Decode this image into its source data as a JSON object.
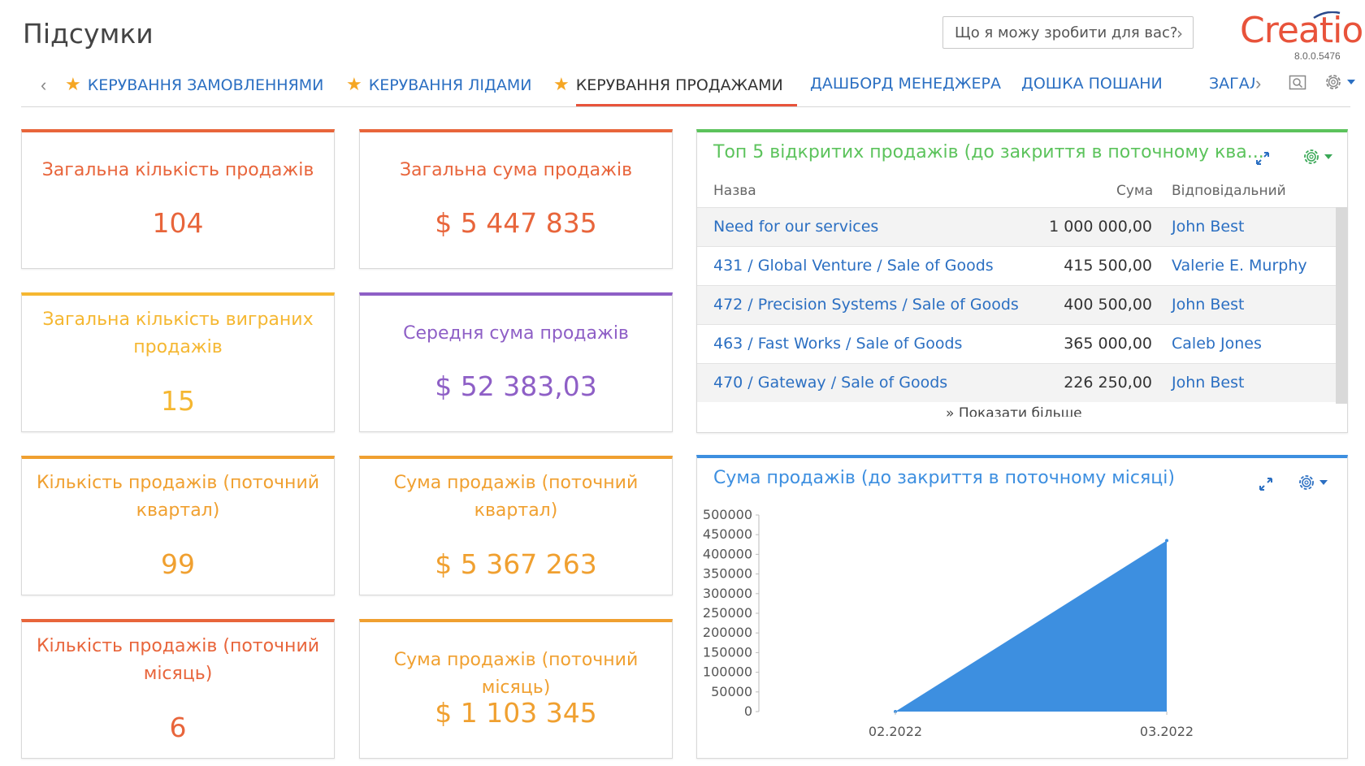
{
  "page": {
    "title": "Підсумки"
  },
  "assistant": {
    "placeholder": "Що я можу зробити для вас?"
  },
  "brand": {
    "logo": "Creatio",
    "version": "8.0.0.5476"
  },
  "tabs": [
    {
      "label": "КЕРУВАННЯ ЗАМОВЛЕННЯМИ",
      "favorite": true
    },
    {
      "label": "КЕРУВАННЯ ЛІДАМИ",
      "favorite": true
    },
    {
      "label": "КЕРУВАННЯ ПРОДАЖАМИ",
      "favorite": true,
      "active": true
    },
    {
      "label": "ДАШБОРД МЕНЕДЖЕРА",
      "favorite": false
    },
    {
      "label": "ДОШКА ПОШАНИ",
      "favorite": false
    },
    {
      "label": "ЗАГАЛЬНИЙ",
      "favorite": false
    }
  ],
  "tiles": [
    {
      "caption": "Загальна кількість продажів",
      "value": "104",
      "color": "#e8653b"
    },
    {
      "caption": "Загальна сума продажів",
      "value": "$ 5 447 835",
      "color": "#e8653b"
    },
    {
      "caption": "Загальна кількість виграних продажів",
      "value": "15",
      "color": "#f5b731"
    },
    {
      "caption": "Середня сума продажів",
      "value": "$ 52 383,03",
      "color": "#8e5fc6"
    },
    {
      "caption": "Кількість продажів (поточний квартал)",
      "value": "99",
      "color": "#f0a030"
    },
    {
      "caption": "Сума продажів (поточний квартал)",
      "value": "$ 5 367 263",
      "color": "#f0a030"
    },
    {
      "caption": "Кількість продажів (поточний місяць)",
      "value": "6",
      "color": "#e8653b"
    },
    {
      "caption": "Сума продажів (поточний місяць)",
      "value": "$ 1 103 345",
      "color": "#f0a030"
    }
  ],
  "top5": {
    "title": "Топ 5 відкритих продажів (до закриття в поточному ква...",
    "color": "#5cc35c",
    "columns": {
      "name": "Назва",
      "sum": "Сума",
      "owner": "Відповідальний"
    },
    "rows": [
      {
        "name": "Need for our services",
        "sum": "1 000 000,00",
        "owner": "John Best"
      },
      {
        "name": "431 / Global Venture / Sale of Goods",
        "sum": "415 500,00",
        "owner": "Valerie E. Murphy"
      },
      {
        "name": "472 / Precision Systems / Sale of Goods",
        "sum": "400 500,00",
        "owner": "John Best"
      },
      {
        "name": "463 / Fast Works / Sale of Goods",
        "sum": "365 000,00",
        "owner": "Caleb Jones"
      },
      {
        "name": "470 / Gateway / Sale of Goods",
        "sum": "226 250,00",
        "owner": "John Best"
      }
    ],
    "show_more": "Показати більше"
  },
  "chart_panel": {
    "title": "Сума продажів (до закриття в поточному місяці)",
    "color": "#3d8fe0"
  },
  "chart_data": {
    "type": "area",
    "title": "Сума продажів (до закриття в поточному місяці)",
    "x": [
      "02.2022",
      "03.2022"
    ],
    "series": [
      {
        "values": [
          0,
          435000
        ]
      }
    ],
    "ylim": [
      0,
      500000
    ],
    "yticks": [
      0,
      50000,
      100000,
      150000,
      200000,
      250000,
      300000,
      350000,
      400000,
      450000,
      500000
    ],
    "ytick_labels": [
      "0",
      "50000",
      "100000",
      "150000",
      "200000",
      "250000",
      "300000",
      "350000",
      "400000",
      "450000",
      "500000"
    ],
    "color": "#3d8fe0",
    "grid": false
  },
  "icons": {
    "tab_left": "chevron-left-icon",
    "tab_right": "chevron-right-icon",
    "search": "search-icon",
    "settings": "gear-icon",
    "expand": "expand-icon",
    "favorite": "star-icon",
    "show_more": "double-chevron-down-icon"
  }
}
